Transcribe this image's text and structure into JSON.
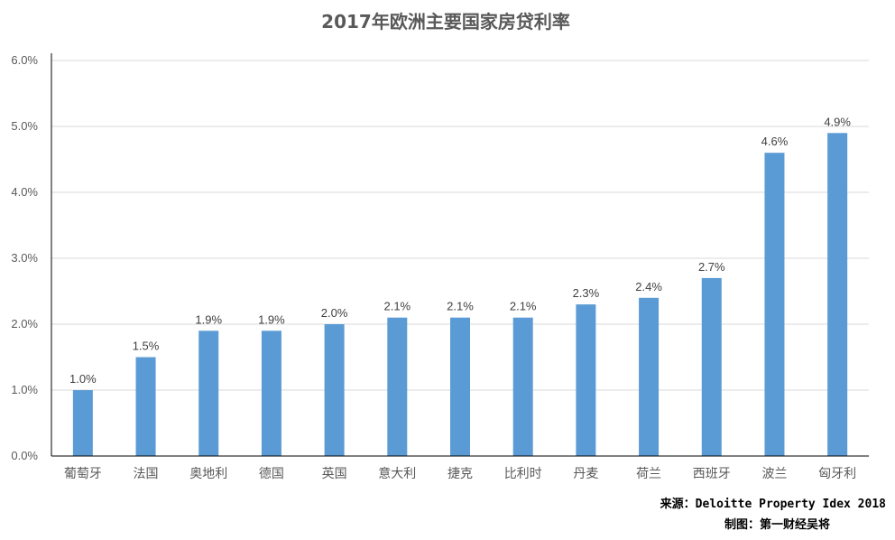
{
  "colors": {
    "bar": "#5b9bd5",
    "grid": "#d9d9d9",
    "axis": "#000000",
    "text": "#595959"
  },
  "chart_data": {
    "type": "bar",
    "title": "2017年欧洲主要国家房贷利率",
    "xlabel": "",
    "ylabel": "",
    "categories": [
      "葡萄牙",
      "法国",
      "奥地利",
      "德国",
      "英国",
      "意大利",
      "捷克",
      "比利时",
      "丹麦",
      "荷兰",
      "西班牙",
      "波兰",
      "匈牙利"
    ],
    "values": [
      1.0,
      1.5,
      1.9,
      1.9,
      2.0,
      2.1,
      2.1,
      2.1,
      2.3,
      2.4,
      2.7,
      4.6,
      4.9
    ],
    "value_labels": [
      "1.0%",
      "1.5%",
      "1.9%",
      "1.9%",
      "2.0%",
      "2.1%",
      "2.1%",
      "2.1%",
      "2.3%",
      "2.4%",
      "2.7%",
      "4.6%",
      "4.9%"
    ],
    "ylim": [
      0,
      6
    ],
    "yticks": [
      0,
      1,
      2,
      3,
      4,
      5,
      6
    ],
    "ytick_labels": [
      "0.0%",
      "1.0%",
      "2.0%",
      "3.0%",
      "4.0%",
      "5.0%",
      "6.0%"
    ],
    "grid": true,
    "legend": "none"
  },
  "footnotes": {
    "source": "来源：Deloitte Property Idex 2018",
    "credit": "制图：第一财经吴将"
  }
}
